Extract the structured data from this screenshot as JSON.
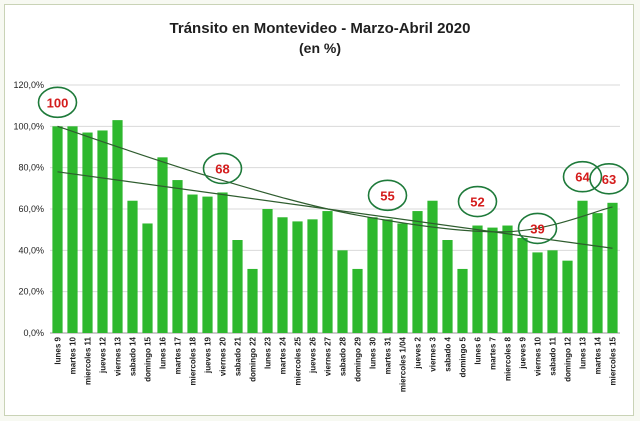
{
  "chart_data": {
    "type": "bar",
    "title": "Tránsito en Montevideo - Marzo-Abril 2020",
    "subtitle": "(en %)",
    "xlabel": "",
    "ylabel": "",
    "ylim": [
      0,
      120
    ],
    "yticks": [
      "0,0%",
      "20,0%",
      "40,0%",
      "60,0%",
      "80,0%",
      "100,0%",
      "120,0%"
    ],
    "grid": true,
    "bar_color": "#2eb82e",
    "trend_color": "#2f5d2f",
    "callout_text_color": "#d41c1c",
    "callout_border_color": "#1e7a3a",
    "categories": [
      "lunes 9",
      "martes 10",
      "miercoles 11",
      "jueves 12",
      "viernes 13",
      "sabado 14",
      "domingo 15",
      "lunes 16",
      "martes 17",
      "miercoles 18",
      "jueves 19",
      "viernes 20",
      "sabado 21",
      "domingo 22",
      "lunes 23",
      "martes 24",
      "miercoles 25",
      "jueves 26",
      "viernes 27",
      "sabado 28",
      "domingo 29",
      "lunes 30",
      "martes 31",
      "miercoles 1/04",
      "jueves 2",
      "viernes 3",
      "sabado 4",
      "domingo 5",
      "lunes 6",
      "martes 7",
      "miercoles 8",
      "jueves 9",
      "viernes 10",
      "sabado 11",
      "domingo 12",
      "lunes 13",
      "martes 14",
      "miercoles 15"
    ],
    "values": [
      100,
      100,
      97,
      98,
      103,
      64,
      53,
      85,
      74,
      67,
      66,
      68,
      45,
      31,
      60,
      56,
      54,
      55,
      59,
      40,
      31,
      56,
      55,
      53,
      59,
      64,
      45,
      31,
      52,
      51,
      52,
      46,
      39,
      40,
      35,
      64,
      58,
      63
    ],
    "callouts": [
      {
        "label": "100",
        "index": 0
      },
      {
        "label": "68",
        "index": 11
      },
      {
        "label": "55",
        "index": 22
      },
      {
        "label": "52",
        "index": 28
      },
      {
        "label": "39",
        "index": 32
      },
      {
        "label": "64",
        "index": 35
      },
      {
        "label": "63",
        "index": 37
      }
    ],
    "trendlines": [
      {
        "kind": "polynomial",
        "points": [
          [
            0,
            100
          ],
          [
            10,
            76
          ],
          [
            20,
            57
          ],
          [
            30,
            49
          ],
          [
            37,
            61
          ]
        ]
      },
      {
        "kind": "linear",
        "points": [
          [
            0,
            78
          ],
          [
            37,
            41
          ]
        ]
      }
    ]
  }
}
